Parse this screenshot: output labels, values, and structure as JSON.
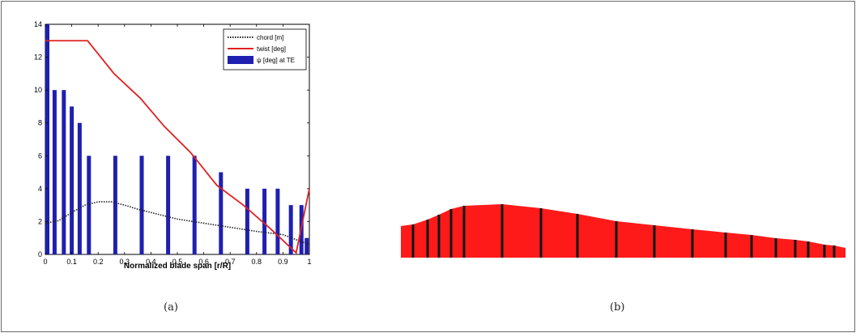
{
  "captions": {
    "a": "(a)",
    "b": "(b)"
  },
  "chart_data": [
    {
      "type": "bar",
      "xlabel": "Normalized blade span [r/R]",
      "ylabel": "",
      "xlim": [
        0,
        1
      ],
      "ylim": [
        0,
        14
      ],
      "xticks": [
        "0",
        "0.1",
        "0.2",
        "0.3",
        "0.4",
        "0.5",
        "0.6",
        "0.7",
        "0.8",
        "0.9",
        "1"
      ],
      "yticks": [
        "0",
        "2",
        "4",
        "6",
        "8",
        "10",
        "12",
        "14"
      ],
      "grid": false,
      "legend_position": "top-right",
      "series": [
        {
          "name": "chord [m]",
          "type": "line",
          "style": "dotted",
          "color": "#222222",
          "x": [
            0,
            0.05,
            0.1,
            0.15,
            0.2,
            0.25,
            0.3,
            0.35,
            0.4,
            0.5,
            0.6,
            0.7,
            0.8,
            0.9,
            1.0
          ],
          "y": [
            1.9,
            2.05,
            2.55,
            3.0,
            3.2,
            3.2,
            3.0,
            2.75,
            2.55,
            2.15,
            1.9,
            1.65,
            1.4,
            1.2,
            0.6
          ]
        },
        {
          "name": "twist [deg]",
          "type": "line",
          "style": "solid",
          "color": "#e02020",
          "x": [
            0,
            0.16,
            0.26,
            0.36,
            0.45,
            0.55,
            0.65,
            0.75,
            0.85,
            0.95,
            1.0
          ],
          "y": [
            13,
            13,
            11,
            9.5,
            7.8,
            6.2,
            4.2,
            3.0,
            1.6,
            0.1,
            4.0
          ]
        },
        {
          "name": "ψ [deg] at TE",
          "type": "bar",
          "color": "#1f1fb0",
          "x": [
            0,
            0.035,
            0.07,
            0.1,
            0.13,
            0.165,
            0.265,
            0.365,
            0.465,
            0.565,
            0.665,
            0.765,
            0.83,
            0.88,
            0.93,
            0.97,
            0.99
          ],
          "y": [
            14,
            10,
            10,
            9,
            8,
            6,
            6,
            6,
            6,
            6,
            5,
            4,
            4,
            4,
            3,
            3,
            1
          ]
        }
      ]
    },
    {
      "type": "diagram",
      "fill_color": "#ff1a1a",
      "section_line_color": "#111111",
      "section_count": 17
    }
  ]
}
